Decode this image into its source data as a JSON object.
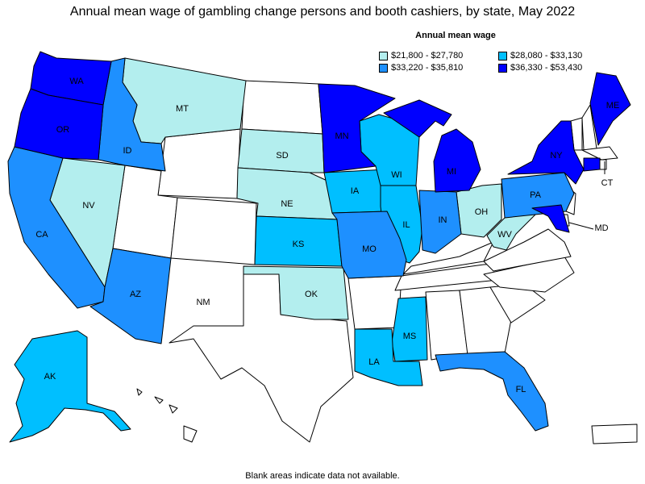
{
  "title": "Annual mean wage of gambling change persons and booth cashiers, by state, May 2022",
  "legend": {
    "title": "Annual mean wage",
    "items": [
      {
        "label": "$21,800 - $27,780",
        "color": "#b3eeee"
      },
      {
        "label": "$28,080 - $33,130",
        "color": "#00bfff"
      },
      {
        "label": "$33,220 - $35,810",
        "color": "#1e90ff"
      },
      {
        "label": "$36,330 - $53,430",
        "color": "#0000ff"
      }
    ]
  },
  "footnote": "Blank areas indicate data not available.",
  "states": {
    "WA": "WA",
    "OR": "OR",
    "ID": "ID",
    "MT": "MT",
    "NV": "NV",
    "CA": "CA",
    "AZ": "AZ",
    "NM": "NM",
    "SD": "SD",
    "NE": "NE",
    "KS": "KS",
    "OK": "OK",
    "MN": "MN",
    "IA": "IA",
    "MO": "MO",
    "WI": "WI",
    "IL": "IL",
    "MI": "MI",
    "IN": "IN",
    "OH": "OH",
    "WV": "WV",
    "PA": "PA",
    "NY": "NY",
    "ME": "ME",
    "CT": "CT",
    "MD": "MD",
    "MS": "MS",
    "LA": "LA",
    "FL": "FL",
    "AK": "AK"
  }
}
